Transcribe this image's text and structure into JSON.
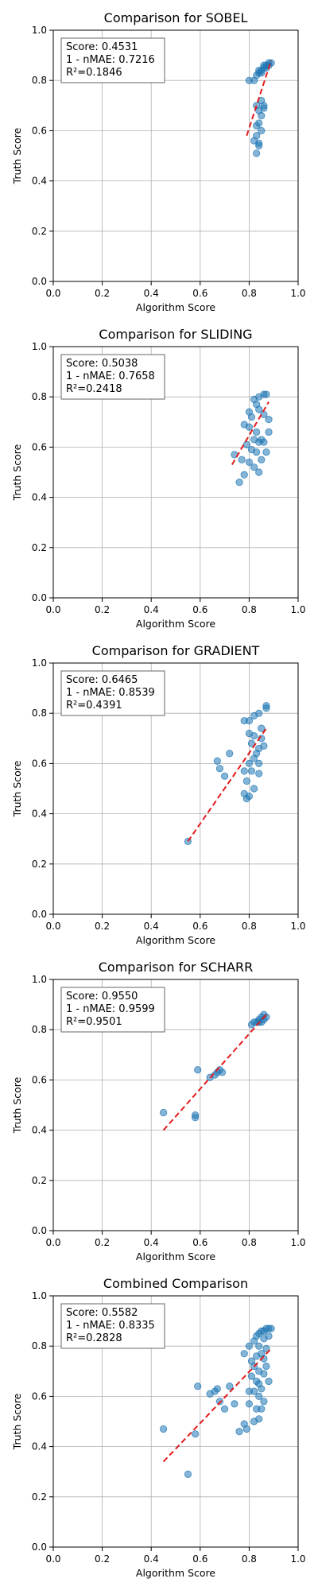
{
  "chart_data": [
    {
      "type": "scatter",
      "title": "Comparison for SOBEL",
      "xlabel": "Algorithm Score",
      "ylabel": "Truth Score",
      "xlim": [
        0,
        1
      ],
      "ylim": [
        0,
        1
      ],
      "xticks": [
        "0.0",
        "0.2",
        "0.4",
        "0.6",
        "0.8",
        "1.0"
      ],
      "yticks": [
        "0.0",
        "0.2",
        "0.4",
        "0.6",
        "0.8",
        "1.0"
      ],
      "grid": true,
      "stats": [
        "Score: 0.4531",
        "1 - nMAE: 0.7216",
        "R²=0.1846"
      ],
      "points": [
        [
          0.8,
          0.8
        ],
        [
          0.82,
          0.8
        ],
        [
          0.83,
          0.82
        ],
        [
          0.84,
          0.83
        ],
        [
          0.85,
          0.84
        ],
        [
          0.86,
          0.85
        ],
        [
          0.87,
          0.86
        ],
        [
          0.88,
          0.87
        ],
        [
          0.85,
          0.83
        ],
        [
          0.86,
          0.86
        ],
        [
          0.89,
          0.87
        ],
        [
          0.87,
          0.85
        ],
        [
          0.84,
          0.84
        ],
        [
          0.88,
          0.86
        ],
        [
          0.83,
          0.7
        ],
        [
          0.84,
          0.68
        ],
        [
          0.85,
          0.66
        ],
        [
          0.86,
          0.69
        ],
        [
          0.84,
          0.63
        ],
        [
          0.85,
          0.6
        ],
        [
          0.83,
          0.58
        ],
        [
          0.82,
          0.56
        ],
        [
          0.84,
          0.55
        ],
        [
          0.83,
          0.51
        ],
        [
          0.84,
          0.54
        ],
        [
          0.86,
          0.7
        ],
        [
          0.85,
          0.72
        ],
        [
          0.83,
          0.62
        ]
      ],
      "fit": [
        [
          0.79,
          0.58
        ],
        [
          0.89,
          0.88
        ]
      ]
    },
    {
      "type": "scatter",
      "title": "Comparison for SLIDING",
      "xlabel": "Algorithm Score",
      "ylabel": "Truth Score",
      "xlim": [
        0,
        1
      ],
      "ylim": [
        0,
        1
      ],
      "xticks": [
        "0.0",
        "0.2",
        "0.4",
        "0.6",
        "0.8",
        "1.0"
      ],
      "yticks": [
        "0.0",
        "0.2",
        "0.4",
        "0.6",
        "0.8",
        "1.0"
      ],
      "grid": true,
      "stats": [
        "Score: 0.5038",
        "1 - nMAE: 0.7658",
        "R²=0.2418"
      ],
      "points": [
        [
          0.82,
          0.79
        ],
        [
          0.84,
          0.8
        ],
        [
          0.86,
          0.81
        ],
        [
          0.87,
          0.81
        ],
        [
          0.83,
          0.77
        ],
        [
          0.8,
          0.74
        ],
        [
          0.81,
          0.72
        ],
        [
          0.84,
          0.75
        ],
        [
          0.86,
          0.73
        ],
        [
          0.88,
          0.71
        ],
        [
          0.78,
          0.69
        ],
        [
          0.8,
          0.68
        ],
        [
          0.83,
          0.66
        ],
        [
          0.85,
          0.63
        ],
        [
          0.84,
          0.62
        ],
        [
          0.82,
          0.63
        ],
        [
          0.86,
          0.62
        ],
        [
          0.88,
          0.66
        ],
        [
          0.79,
          0.61
        ],
        [
          0.81,
          0.59
        ],
        [
          0.83,
          0.58
        ],
        [
          0.87,
          0.58
        ],
        [
          0.74,
          0.57
        ],
        [
          0.77,
          0.55
        ],
        [
          0.8,
          0.54
        ],
        [
          0.82,
          0.52
        ],
        [
          0.84,
          0.5
        ],
        [
          0.78,
          0.49
        ],
        [
          0.76,
          0.46
        ],
        [
          0.85,
          0.55
        ]
      ],
      "fit": [
        [
          0.73,
          0.53
        ],
        [
          0.88,
          0.78
        ]
      ]
    },
    {
      "type": "scatter",
      "title": "Comparison for GRADIENT",
      "xlabel": "Algorithm Score",
      "ylabel": "Truth Score",
      "xlim": [
        0,
        1
      ],
      "ylim": [
        0,
        1
      ],
      "xticks": [
        "0.0",
        "0.2",
        "0.4",
        "0.6",
        "0.8",
        "1.0"
      ],
      "yticks": [
        "0.0",
        "0.2",
        "0.4",
        "0.6",
        "0.8",
        "1.0"
      ],
      "grid": true,
      "stats": [
        "Score: 0.6465",
        "1 - nMAE: 0.8539",
        "R²=0.4391"
      ],
      "points": [
        [
          0.55,
          0.29
        ],
        [
          0.67,
          0.61
        ],
        [
          0.68,
          0.58
        ],
        [
          0.72,
          0.64
        ],
        [
          0.7,
          0.55
        ],
        [
          0.78,
          0.77
        ],
        [
          0.8,
          0.77
        ],
        [
          0.82,
          0.79
        ],
        [
          0.84,
          0.8
        ],
        [
          0.87,
          0.82
        ],
        [
          0.87,
          0.83
        ],
        [
          0.8,
          0.72
        ],
        [
          0.82,
          0.71
        ],
        [
          0.85,
          0.7
        ],
        [
          0.81,
          0.68
        ],
        [
          0.84,
          0.66
        ],
        [
          0.86,
          0.67
        ],
        [
          0.83,
          0.64
        ],
        [
          0.82,
          0.62
        ],
        [
          0.84,
          0.6
        ],
        [
          0.8,
          0.6
        ],
        [
          0.78,
          0.57
        ],
        [
          0.81,
          0.57
        ],
        [
          0.84,
          0.56
        ],
        [
          0.79,
          0.53
        ],
        [
          0.82,
          0.5
        ],
        [
          0.78,
          0.48
        ],
        [
          0.8,
          0.47
        ],
        [
          0.79,
          0.46
        ],
        [
          0.85,
          0.74
        ]
      ],
      "fit": [
        [
          0.55,
          0.29
        ],
        [
          0.87,
          0.74
        ]
      ]
    },
    {
      "type": "scatter",
      "title": "Comparison for SCHARR",
      "xlabel": "Algorithm Score",
      "ylabel": "Truth Score",
      "xlim": [
        0,
        1
      ],
      "ylim": [
        0,
        1
      ],
      "xticks": [
        "0.0",
        "0.2",
        "0.4",
        "0.6",
        "0.8",
        "1.0"
      ],
      "yticks": [
        "0.0",
        "0.2",
        "0.4",
        "0.6",
        "0.8",
        "1.0"
      ],
      "grid": true,
      "stats": [
        "Score: 0.9550",
        "1 - nMAE: 0.9599",
        "R²=0.9501"
      ],
      "points": [
        [
          0.45,
          0.47
        ],
        [
          0.58,
          0.46
        ],
        [
          0.58,
          0.45
        ],
        [
          0.59,
          0.64
        ],
        [
          0.64,
          0.61
        ],
        [
          0.66,
          0.62
        ],
        [
          0.67,
          0.63
        ],
        [
          0.68,
          0.64
        ],
        [
          0.69,
          0.63
        ],
        [
          0.81,
          0.82
        ],
        [
          0.82,
          0.83
        ],
        [
          0.83,
          0.83
        ],
        [
          0.84,
          0.84
        ],
        [
          0.85,
          0.85
        ],
        [
          0.86,
          0.84
        ],
        [
          0.87,
          0.85
        ],
        [
          0.84,
          0.83
        ],
        [
          0.86,
          0.86
        ],
        [
          0.85,
          0.83
        ]
      ],
      "fit": [
        [
          0.45,
          0.4
        ],
        [
          0.87,
          0.86
        ]
      ]
    },
    {
      "type": "scatter",
      "title": "Combined Comparison",
      "xlabel": "Algorithm Score",
      "ylabel": "Truth Score",
      "xlim": [
        0,
        1
      ],
      "ylim": [
        0,
        1
      ],
      "xticks": [
        "0.0",
        "0.2",
        "0.4",
        "0.6",
        "0.8",
        "1.0"
      ],
      "yticks": [
        "0.0",
        "0.2",
        "0.4",
        "0.6",
        "0.8",
        "1.0"
      ],
      "grid": true,
      "stats": [
        "Score: 0.5582",
        "1 - nMAE: 0.8335",
        "R²=0.2828"
      ],
      "points": [
        [
          0.45,
          0.47
        ],
        [
          0.55,
          0.29
        ],
        [
          0.58,
          0.45
        ],
        [
          0.59,
          0.64
        ],
        [
          0.64,
          0.61
        ],
        [
          0.66,
          0.62
        ],
        [
          0.67,
          0.63
        ],
        [
          0.68,
          0.58
        ],
        [
          0.7,
          0.55
        ],
        [
          0.72,
          0.64
        ],
        [
          0.74,
          0.57
        ],
        [
          0.76,
          0.46
        ],
        [
          0.78,
          0.49
        ],
        [
          0.78,
          0.77
        ],
        [
          0.8,
          0.8
        ],
        [
          0.81,
          0.74
        ],
        [
          0.82,
          0.82
        ],
        [
          0.83,
          0.84
        ],
        [
          0.84,
          0.85
        ],
        [
          0.85,
          0.86
        ],
        [
          0.86,
          0.86
        ],
        [
          0.87,
          0.87
        ],
        [
          0.88,
          0.87
        ],
        [
          0.89,
          0.87
        ],
        [
          0.84,
          0.8
        ],
        [
          0.86,
          0.83
        ],
        [
          0.82,
          0.72
        ],
        [
          0.84,
          0.7
        ],
        [
          0.86,
          0.69
        ],
        [
          0.83,
          0.66
        ],
        [
          0.85,
          0.63
        ],
        [
          0.82,
          0.62
        ],
        [
          0.84,
          0.6
        ],
        [
          0.86,
          0.58
        ],
        [
          0.8,
          0.57
        ],
        [
          0.83,
          0.55
        ],
        [
          0.84,
          0.51
        ],
        [
          0.82,
          0.5
        ],
        [
          0.79,
          0.47
        ],
        [
          0.81,
          0.68
        ],
        [
          0.87,
          0.72
        ],
        [
          0.88,
          0.66
        ],
        [
          0.8,
          0.62
        ],
        [
          0.85,
          0.55
        ],
        [
          0.87,
          0.79
        ],
        [
          0.85,
          0.77
        ],
        [
          0.83,
          0.76
        ],
        [
          0.88,
          0.84
        ],
        [
          0.86,
          0.75
        ],
        [
          0.84,
          0.65
        ]
      ],
      "fit": [
        [
          0.45,
          0.34
        ],
        [
          0.89,
          0.79
        ]
      ]
    }
  ]
}
